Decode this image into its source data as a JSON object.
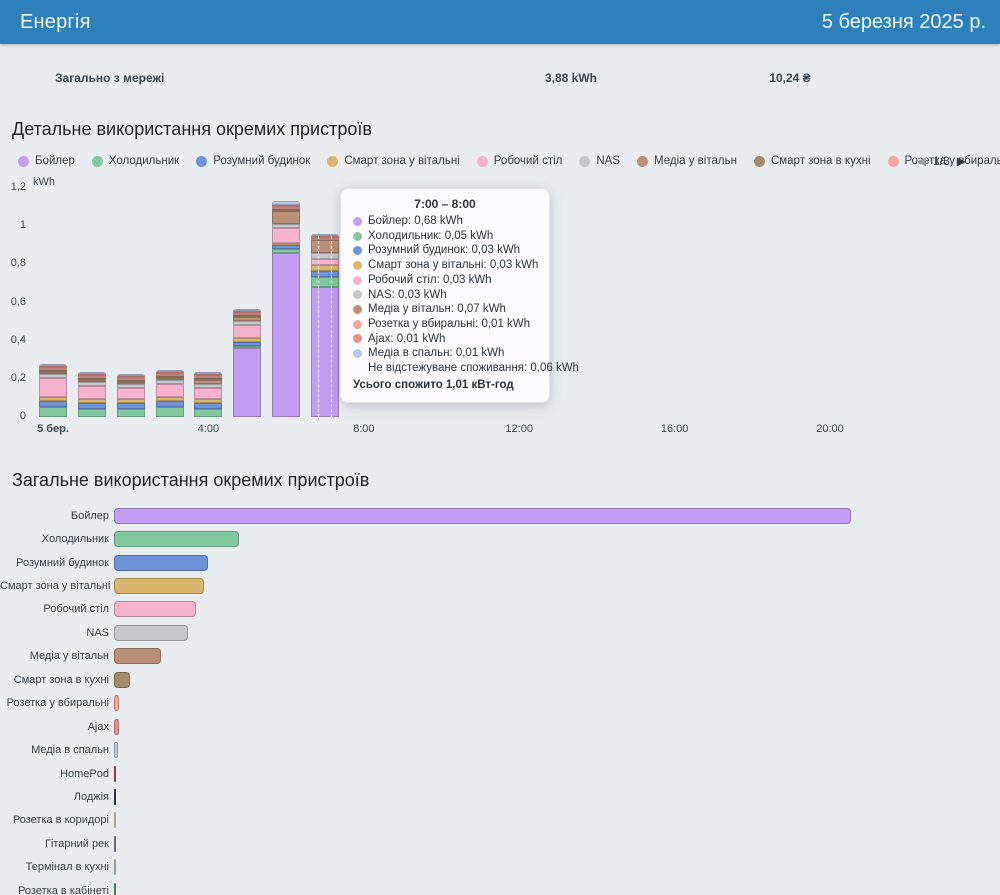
{
  "header": {
    "title": "Енергія",
    "date": "5 березня 2025 р.",
    "bg_color": "#2e80ba"
  },
  "summary": {
    "label": "Загально з мережі",
    "energy": "3,88 kWh",
    "cost": "10,24 ₴"
  },
  "detail_section": {
    "title": "Детальне використання окремих пристроїв",
    "pagination": {
      "prev_icon": "◀",
      "page": "1/3",
      "next_icon": "▶"
    }
  },
  "totals_section": {
    "title": "Загальне використання окремих пристроїв"
  },
  "devices": [
    {
      "name": "Бойлер",
      "color": "#c39df1"
    },
    {
      "name": "Холодильник",
      "color": "#82c9a0"
    },
    {
      "name": "Розумний будинок",
      "color": "#6e93d9"
    },
    {
      "name": "Смарт зона у вітальні",
      "color": "#dab66e"
    },
    {
      "name": "Робочий стіл",
      "color": "#f7b2cd"
    },
    {
      "name": "NAS",
      "color": "#c5c8cc"
    },
    {
      "name": "Медіа у вітальн",
      "color": "#bb9078"
    },
    {
      "name": "Смарт зона в кухні",
      "color": "#a58a6b"
    },
    {
      "name": "Розетка у вбиральні",
      "color": "#f2a69e"
    },
    {
      "name": "Ajax",
      "color": "#e3928c"
    },
    {
      "name": "Медіа в спальн",
      "color": "#bcc9e6"
    },
    {
      "name": "HomePod",
      "color": "#cf4a63"
    },
    {
      "name": "Лоджія",
      "color": "#31406e"
    },
    {
      "name": "Розетка в коридорі",
      "color": "#ead9b5"
    },
    {
      "name": "Гітарний рек",
      "color": "#8b9198"
    },
    {
      "name": "Термінал в кухні",
      "color": "#bcd9bd"
    },
    {
      "name": "Розетка в кабінеті",
      "color": "#57a774"
    }
  ],
  "chart_data": [
    {
      "type": "bar",
      "stacked": true,
      "title": "Детальне використання окремих пристроїв",
      "ylabel": "kWh",
      "ylim": [
        0,
        1.2
      ],
      "y_ticks": [
        "0",
        "0,2",
        "0,4",
        "0,6",
        "0,8",
        "1",
        "1,2"
      ],
      "x": [
        "0:00",
        "1:00",
        "2:00",
        "3:00",
        "4:00",
        "5:00",
        "6:00",
        "7:00"
      ],
      "x_ticks": [
        {
          "label": "5 бер.",
          "hour": 0,
          "bold": true
        },
        {
          "label": "4:00",
          "hour": 4,
          "bold": false
        },
        {
          "label": "8:00",
          "hour": 8,
          "bold": false
        },
        {
          "label": "12:00",
          "hour": 12,
          "bold": false
        },
        {
          "label": "16:00",
          "hour": 16,
          "bold": false
        },
        {
          "label": "20:00",
          "hour": 20,
          "bold": false
        }
      ],
      "hovered_bar_index": 7,
      "values_note": "kWh per hour, estimated from pixels except hour 7 which is from tooltip",
      "series": [
        {
          "name": "Бойлер",
          "color": "#c39df1",
          "values": [
            0,
            0,
            0,
            0,
            0,
            0.36,
            0.86,
            0.68
          ]
        },
        {
          "name": "Холодильник",
          "color": "#82c9a0",
          "values": [
            0.05,
            0.04,
            0.04,
            0.05,
            0.04,
            0.01,
            0.02,
            0.05
          ]
        },
        {
          "name": "Розумний будинок",
          "color": "#6e93d9",
          "values": [
            0.03,
            0.03,
            0.03,
            0.03,
            0.03,
            0.02,
            0.02,
            0.03
          ]
        },
        {
          "name": "Смарт зона у вітальні",
          "color": "#dab66e",
          "values": [
            0.02,
            0.02,
            0.02,
            0.02,
            0.02,
            0.02,
            0.01,
            0.03
          ]
        },
        {
          "name": "Робочий стіл",
          "color": "#f7b2cd",
          "values": [
            0.1,
            0.07,
            0.06,
            0.07,
            0.06,
            0.07,
            0.08,
            0.03
          ]
        },
        {
          "name": "NAS",
          "color": "#c5c8cc",
          "values": [
            0.02,
            0.02,
            0.02,
            0.02,
            0.02,
            0.02,
            0.02,
            0.03
          ]
        },
        {
          "name": "Медіа у вітальн",
          "color": "#bb9078",
          "values": [
            0.01,
            0.01,
            0.01,
            0.01,
            0.02,
            0.02,
            0.07,
            0.07
          ]
        },
        {
          "name": "Смарт зона в кухні",
          "color": "#a58a6b",
          "values": [
            0.005,
            0.005,
            0.005,
            0.005,
            0.005,
            0.005,
            0.005,
            0
          ]
        },
        {
          "name": "Розетка у вбиральні",
          "color": "#f2a69e",
          "values": [
            0.01,
            0.005,
            0.005,
            0.005,
            0.005,
            0.01,
            0.01,
            0.01
          ]
        },
        {
          "name": "Ajax",
          "color": "#e3928c",
          "values": [
            0.005,
            0.005,
            0.005,
            0.005,
            0.005,
            0.01,
            0.01,
            0.01
          ]
        },
        {
          "name": "Медіа в спальн",
          "color": "#bcc9e6",
          "values": [
            0.005,
            0.005,
            0.005,
            0.005,
            0.005,
            0.005,
            0.02,
            0.01
          ]
        }
      ]
    },
    {
      "type": "bar",
      "orientation": "horizontal",
      "title": "Загальне використання окремих пристроїв",
      "values_note": "total kWh per device, estimated from bar lengths",
      "categories": [
        "Бойлер",
        "Холодильник",
        "Розумний будинок",
        "Смарт зона у вітальні",
        "Робочий стіл",
        "NAS",
        "Медіа у вітальн",
        "Смарт зона в кухні",
        "Розетка у вбиральні",
        "Ajax",
        "Медіа в спальн",
        "HomePod",
        "Лоджія",
        "Розетка в коридорі",
        "Гітарний рек",
        "Термінал в кухні",
        "Розетка в кабінеті"
      ],
      "values": [
        1.89,
        0.32,
        0.24,
        0.23,
        0.21,
        0.19,
        0.12,
        0.04,
        0.013,
        0.013,
        0.01,
        0.005,
        0.003,
        0.003,
        0.002,
        0.002,
        0.003
      ]
    }
  ],
  "tooltip": {
    "title": "7:00 – 8:00",
    "rows": [
      {
        "name": "Бойлер",
        "value": "0,68 kWh",
        "color": "#c39df1"
      },
      {
        "name": "Холодильник",
        "value": "0,05 kWh",
        "color": "#82c9a0"
      },
      {
        "name": "Розумний будинок",
        "value": "0,03 kWh",
        "color": "#6e93d9"
      },
      {
        "name": "Смарт зона у вітальні",
        "value": "0,03 kWh",
        "color": "#dab66e"
      },
      {
        "name": "Робочий стіл",
        "value": "0,03 kWh",
        "color": "#f7b2cd"
      },
      {
        "name": "NAS",
        "value": "0,03 kWh",
        "color": "#c5c8cc"
      },
      {
        "name": "Медіа у вітальн",
        "value": "0,07 kWh",
        "color": "#bb9078"
      },
      {
        "name": "Розетка у вбиральні",
        "value": "0,01 kWh",
        "color": "#f2a69e"
      },
      {
        "name": "Ajax",
        "value": "0,01 kWh",
        "color": "#e3928c"
      },
      {
        "name": "Медіа в спальн",
        "value": "0,01 kWh",
        "color": "#bcc9e6"
      }
    ],
    "untracked": {
      "name": "Не відстежуване споживання",
      "value": "0,06 kWh"
    },
    "total": "Усього спожито 1,01 кВт-год"
  }
}
